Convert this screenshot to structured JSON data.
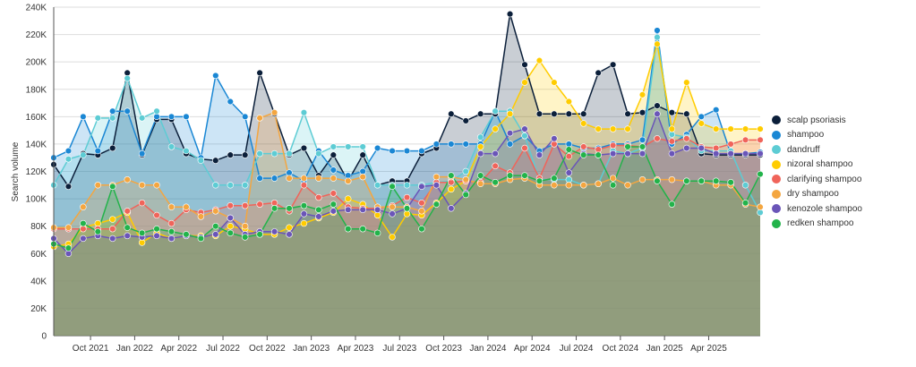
{
  "chart_data": {
    "type": "area",
    "title": "",
    "xlabel": "",
    "ylabel": "Search volume",
    "ylim": [
      0,
      240000
    ],
    "y_ticks": [
      0,
      20000,
      40000,
      60000,
      80000,
      100000,
      120000,
      140000,
      160000,
      180000,
      200000,
      220000,
      240000
    ],
    "y_tick_labels": [
      "0",
      "20K",
      "40K",
      "60K",
      "80K",
      "100K",
      "120K",
      "140K",
      "160K",
      "180K",
      "200K",
      "220K",
      "240K"
    ],
    "x_labels": [
      "Oct 2021",
      "Jan 2022",
      "Apr 2022",
      "Jul 2022",
      "Oct 2022",
      "Jan 2023",
      "Apr 2023",
      "Jul 2023",
      "Oct 2023",
      "Jan 2024",
      "Apr 2024",
      "Jul 2024",
      "Oct 2024",
      "Jan 2025",
      "Apr 2025"
    ],
    "x_label_positions": [
      2.5,
      5.5,
      8.5,
      11.5,
      14.5,
      17.5,
      20.5,
      23.5,
      26.5,
      29.5,
      32.5,
      35.5,
      38.5,
      41.5,
      44.5
    ],
    "n_points": 49,
    "grid": true,
    "legend_position": "right",
    "series": [
      {
        "name": "scalp psoriasis",
        "color": "#0b1f3a",
        "values": [
          125000,
          109000,
          133000,
          132000,
          137000,
          192000,
          132000,
          158000,
          158000,
          133000,
          129000,
          128000,
          132000,
          132000,
          192000,
          162000,
          132000,
          137000,
          117000,
          132000,
          113000,
          132000,
          110000,
          113000,
          113000,
          133000,
          137000,
          162000,
          157000,
          162000,
          162000,
          235000,
          198000,
          162000,
          162000,
          162000,
          162000,
          192000,
          198000,
          162000,
          163000,
          168000,
          163000,
          162000,
          133000,
          132000,
          132000,
          132000,
          132000
        ]
      },
      {
        "name": "shampoo",
        "color": "#1a87d4",
        "values": [
          130000,
          135000,
          160000,
          135000,
          164000,
          164000,
          133000,
          160000,
          160000,
          160000,
          130000,
          190000,
          171000,
          160000,
          115000,
          115000,
          119000,
          113000,
          135000,
          121000,
          117000,
          120000,
          137000,
          135000,
          135000,
          135000,
          140000,
          140000,
          140000,
          140000,
          164000,
          140000,
          146000,
          135000,
          140000,
          140000,
          137000,
          137000,
          140000,
          140000,
          143000,
          223000,
          140000,
          147000,
          160000,
          165000,
          133000,
          133000,
          134000
        ]
      },
      {
        "name": "dandruff",
        "color": "#5dccd4",
        "values": [
          110000,
          129000,
          132000,
          159000,
          159000,
          188000,
          159000,
          164000,
          138000,
          135000,
          128000,
          110000,
          110000,
          110000,
          133000,
          133000,
          133000,
          163000,
          133000,
          138000,
          138000,
          138000,
          110000,
          110000,
          110000,
          110000,
          112000,
          113000,
          120000,
          145000,
          164000,
          164000,
          146000,
          114000,
          114000,
          114000,
          110000,
          111000,
          135000,
          133000,
          137000,
          218000,
          147000,
          145000,
          135000,
          135000,
          135000,
          110000,
          90000
        ]
      },
      {
        "name": "nizoral shampoo",
        "color": "#ffcc00",
        "values": [
          65000,
          67000,
          79000,
          82000,
          85000,
          90000,
          68000,
          75000,
          71000,
          73000,
          73000,
          73000,
          80000,
          78000,
          74000,
          74000,
          79000,
          82000,
          86000,
          90000,
          100000,
          96000,
          88000,
          72000,
          89000,
          88000,
          97000,
          107000,
          113000,
          138000,
          151000,
          162000,
          185000,
          201000,
          185000,
          171000,
          155000,
          151000,
          151000,
          151000,
          176000,
          213000,
          151000,
          185000,
          155000,
          151000,
          151000,
          151000,
          151000
        ]
      },
      {
        "name": "clarifying shampoo",
        "color": "#f0645a",
        "values": [
          78000,
          78000,
          78000,
          78000,
          78000,
          91000,
          97000,
          88000,
          82000,
          92000,
          90000,
          92000,
          95000,
          95000,
          96000,
          97000,
          91000,
          110000,
          101000,
          104000,
          94000,
          93000,
          93000,
          95000,
          101000,
          97000,
          112000,
          112000,
          113000,
          112000,
          124000,
          119000,
          137000,
          115000,
          140000,
          131000,
          138000,
          136000,
          139000,
          139000,
          138000,
          144000,
          142000,
          144000,
          138000,
          137000,
          140000,
          143000,
          143000
        ]
      },
      {
        "name": "dry shampoo",
        "color": "#f4a640",
        "values": [
          79000,
          79000,
          94000,
          110000,
          110000,
          114000,
          110000,
          110000,
          94000,
          94000,
          87000,
          91000,
          86000,
          80000,
          159000,
          163000,
          115000,
          115000,
          115000,
          115000,
          113000,
          116000,
          94000,
          94000,
          94000,
          91000,
          116000,
          116000,
          114000,
          111000,
          111000,
          114000,
          115000,
          110000,
          110000,
          110000,
          110000,
          111000,
          115000,
          110000,
          114000,
          114000,
          114000,
          113000,
          113000,
          110000,
          110000,
          96000,
          94000
        ]
      },
      {
        "name": "kenozole shampoo",
        "color": "#6a55b8",
        "values": [
          71000,
          60000,
          71000,
          73000,
          71000,
          73000,
          72000,
          73000,
          71000,
          73000,
          72000,
          74000,
          86000,
          74000,
          76000,
          76000,
          74000,
          89000,
          87000,
          91000,
          92000,
          92000,
          92000,
          89000,
          93000,
          109000,
          110000,
          93000,
          104000,
          133000,
          133000,
          148000,
          151000,
          132000,
          144000,
          119000,
          133000,
          132000,
          133000,
          133000,
          133000,
          162000,
          133000,
          137000,
          137000,
          133000,
          133000,
          133000,
          133000
        ]
      },
      {
        "name": "redken shampoo",
        "color": "#22b34a",
        "values": [
          67000,
          64000,
          82000,
          76000,
          109000,
          79000,
          75000,
          78000,
          76000,
          74000,
          71000,
          80000,
          75000,
          72000,
          74000,
          93000,
          93000,
          95000,
          92000,
          96000,
          78000,
          78000,
          75000,
          109000,
          93000,
          78000,
          96000,
          117000,
          103000,
          117000,
          112000,
          117000,
          117000,
          113000,
          115000,
          136000,
          132000,
          132000,
          110000,
          138000,
          138000,
          113000,
          96000,
          113000,
          113000,
          113000,
          112000,
          97000,
          118000
        ]
      }
    ]
  },
  "legend": {
    "items": [
      {
        "label": "scalp psoriasis",
        "color": "#0b1f3a"
      },
      {
        "label": "shampoo",
        "color": "#1a87d4"
      },
      {
        "label": "dandruff",
        "color": "#5dccd4"
      },
      {
        "label": "nizoral shampoo",
        "color": "#ffcc00"
      },
      {
        "label": "clarifying shampoo",
        "color": "#f0645a"
      },
      {
        "label": "dry shampoo",
        "color": "#f4a640"
      },
      {
        "label": "kenozole shampoo",
        "color": "#6a55b8"
      },
      {
        "label": "redken shampoo",
        "color": "#22b34a"
      }
    ]
  }
}
